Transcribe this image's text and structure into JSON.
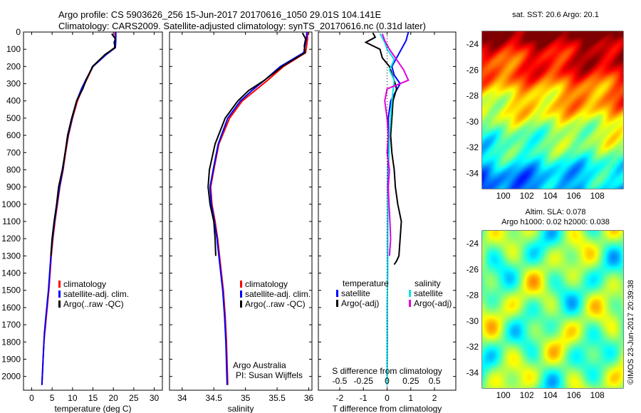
{
  "header": {
    "line1": "Argo profile: CS 5903626_256 15-Jun-2017 20170616_1050 29.01S 104.141E",
    "line2": "Climatology: CARS2009. Satellite-adjusted climatology: synTS_20170616.nc (0.31d later)"
  },
  "chart_data": [
    {
      "type": "line",
      "name": "temperature-profile",
      "xlabel": "temperature (deg C)",
      "ylabel": "",
      "xlim": [
        -2,
        32
      ],
      "ylim": [
        2080,
        0
      ],
      "xticks": [
        0,
        5,
        10,
        15,
        20,
        25,
        30
      ],
      "yticks": [
        0,
        100,
        200,
        300,
        400,
        500,
        600,
        700,
        800,
        900,
        1000,
        1100,
        1200,
        1300,
        1400,
        1500,
        1600,
        1700,
        1800,
        1900,
        2000
      ],
      "legend": [
        "climatology",
        "satellite-adj. clim.",
        "Argo(..raw -QC)"
      ],
      "series": [
        {
          "name": "climatology",
          "color": "#ff0000",
          "x": [
            20.4,
            20.4,
            20.3,
            18.2,
            15.0,
            13.4,
            12.4,
            11.2,
            10.0,
            9.0,
            8.3,
            7.7,
            6.9,
            6.3,
            5.7,
            5.2,
            4.8,
            4.5,
            4.2,
            4.0,
            3.8,
            3.6,
            3.4,
            3.2,
            3.0,
            2.9,
            2.8,
            2.7,
            2.6,
            2.5
          ],
          "y": [
            0,
            50,
            90,
            130,
            200,
            280,
            330,
            400,
            500,
            600,
            700,
            800,
            900,
            1000,
            1100,
            1200,
            1300,
            1400,
            1500,
            1550,
            1600,
            1650,
            1700,
            1750,
            1800,
            1850,
            1900,
            1950,
            2000,
            2050
          ]
        },
        {
          "name": "satellite-adj. clim.",
          "color": "#0000ff",
          "x": [
            20.6,
            20.6,
            20.5,
            18.3,
            15.0,
            13.2,
            12.2,
            11.0,
            9.9,
            8.9,
            8.2,
            7.6,
            6.8,
            6.2,
            5.6,
            5.1,
            4.7,
            4.4,
            4.1,
            3.9,
            3.7,
            3.5,
            3.3,
            3.1,
            3.0,
            2.9,
            2.8,
            2.7,
            2.6,
            2.5
          ],
          "y": [
            0,
            50,
            90,
            130,
            200,
            280,
            330,
            400,
            500,
            600,
            700,
            800,
            900,
            1000,
            1100,
            1200,
            1300,
            1400,
            1500,
            1550,
            1600,
            1650,
            1700,
            1750,
            1800,
            1850,
            1900,
            1950,
            2000,
            2050
          ]
        },
        {
          "name": "Argo(..raw -QC)",
          "color": "#000000",
          "x": [
            19.6,
            20.5,
            20.2,
            20.4,
            18.0,
            14.9,
            13.3,
            12.5,
            11.0,
            9.8,
            8.8,
            8.2,
            7.5,
            6.6,
            6.1,
            5.5,
            5.0,
            4.7
          ],
          "y": [
            10,
            40,
            60,
            90,
            130,
            200,
            280,
            330,
            400,
            500,
            600,
            700,
            800,
            900,
            1000,
            1100,
            1200,
            1300
          ]
        }
      ]
    },
    {
      "type": "line",
      "name": "salinity-profile",
      "xlabel": "salinity",
      "ylabel": "",
      "xlim": [
        33.8,
        36.05
      ],
      "ylim": [
        2080,
        0
      ],
      "xticks": [
        34,
        34.5,
        35,
        35.5,
        36
      ],
      "xticklabels": [
        "34",
        "34.5",
        "35",
        "35.5",
        "36"
      ],
      "legend": [
        "climatology",
        "satellite-adj. clim.",
        "Argo(..raw -QC)"
      ],
      "annotation": [
        "Argo Australia",
        "PI: Susan Wijffels"
      ],
      "series": [
        {
          "name": "climatology",
          "color": "#ff0000",
          "x": [
            35.98,
            35.98,
            35.95,
            35.6,
            35.35,
            35.15,
            34.95,
            34.75,
            34.58,
            34.5,
            34.45,
            34.47,
            34.52,
            34.56,
            34.59,
            34.62,
            34.65,
            34.68,
            34.7,
            34.72
          ],
          "y": [
            0,
            40,
            120,
            200,
            280,
            340,
            400,
            500,
            650,
            800,
            900,
            1000,
            1100,
            1200,
            1300,
            1400,
            1500,
            1650,
            1800,
            2050
          ]
        },
        {
          "name": "satellite-adj. clim.",
          "color": "#0000ff",
          "x": [
            35.97,
            35.96,
            35.92,
            35.55,
            35.3,
            35.1,
            34.92,
            34.72,
            34.57,
            34.49,
            34.44,
            34.46,
            34.51,
            34.55,
            34.58,
            34.61,
            34.64,
            34.67,
            34.69,
            34.71
          ],
          "y": [
            0,
            40,
            120,
            200,
            280,
            340,
            400,
            500,
            650,
            800,
            900,
            1000,
            1100,
            1200,
            1300,
            1400,
            1500,
            1650,
            1800,
            2050
          ]
        },
        {
          "name": "Argo(..raw -QC)",
          "color": "#000000",
          "x": [
            35.9,
            35.95,
            35.93,
            35.94,
            35.58,
            35.3,
            35.05,
            34.88,
            34.68,
            34.52,
            34.43,
            34.41,
            34.44,
            34.5,
            34.52,
            34.53
          ],
          "y": [
            5,
            40,
            80,
            120,
            200,
            280,
            340,
            400,
            500,
            650,
            800,
            900,
            1000,
            1100,
            1200,
            1300
          ]
        }
      ]
    },
    {
      "type": "line",
      "name": "difference-profile",
      "xlabel": "T difference from climatology",
      "xlabel2": "S difference from climatology",
      "xlim": [
        -2.9,
        2.9
      ],
      "ylim": [
        2080,
        0
      ],
      "xticks": [
        -2,
        -1,
        0,
        1,
        2
      ],
      "xticklabels": [
        "-2",
        "-1",
        "0",
        "1",
        "2"
      ],
      "xticks2": [
        -0.5,
        -0.25,
        0,
        0.25,
        0.5
      ],
      "xticklabels2": [
        "-0.5",
        "-0.25",
        "0",
        "0.25",
        "0.5"
      ],
      "legend_temperature": {
        "heading": "temperature",
        "items": [
          "satellite",
          "Argo(-adj)"
        ]
      },
      "legend_salinity": {
        "heading": "salinity",
        "items": [
          "satellite",
          "Argo(-adj)"
        ]
      },
      "series": [
        {
          "name": "temperature satellite",
          "color": "#0000ff",
          "x": [
            0.9,
            0.8,
            0.6,
            0.4,
            0.2,
            0.3,
            0.55,
            0.35,
            0.15,
            0.05,
            0.05,
            0.05,
            0.04,
            0.03,
            0.03,
            0.02,
            0.02,
            0.01,
            0.01,
            0.0,
            0.0
          ],
          "y": [
            0,
            50,
            100,
            150,
            200,
            250,
            300,
            350,
            400,
            500,
            600,
            700,
            800,
            900,
            1000,
            1200,
            1400,
            1600,
            1800,
            2000,
            2050
          ]
        },
        {
          "name": "temperature Argo(-adj)",
          "color": "#000000",
          "x": [
            -0.6,
            -0.5,
            -0.9,
            -0.3,
            -0.2,
            0.1,
            0.3,
            0.4,
            0.25,
            0.2,
            0.15,
            0.2,
            0.3,
            0.35,
            0.45,
            0.6,
            0.55,
            0.5,
            0.4,
            0.3
          ],
          "y": [
            5,
            30,
            60,
            100,
            150,
            200,
            280,
            330,
            400,
            500,
            600,
            700,
            800,
            900,
            1000,
            1100,
            1200,
            1300,
            1330,
            1350
          ]
        },
        {
          "name": "salinity satellite",
          "color": "#00e5e5",
          "x": [
            -0.3,
            -0.1,
            0.0,
            0.3,
            0.1,
            0.3,
            0.2,
            0.15,
            0.1,
            0.08,
            0.06,
            0.05,
            0.04,
            0.03,
            0.02,
            0.01,
            0.0
          ],
          "y": [
            10,
            60,
            100,
            160,
            220,
            280,
            400,
            500,
            600,
            700,
            800,
            900,
            1000,
            1200,
            1400,
            1700,
            2050
          ]
        },
        {
          "name": "salinity Argo(-adj)",
          "color": "#e000e0",
          "x": [
            -0.2,
            -0.1,
            0.1,
            0.7,
            0.9,
            0.0,
            -0.1,
            0.0,
            0.05,
            0.0,
            0.1,
            0.05,
            0.08,
            0.12,
            0.15,
            0.1
          ],
          "y": [
            10,
            50,
            100,
            220,
            280,
            330,
            400,
            500,
            600,
            700,
            800,
            900,
            1000,
            1100,
            1200,
            1300
          ]
        }
      ]
    },
    {
      "type": "heatmap",
      "name": "sst-map",
      "title": "sat. SST: 20.6 Argo: 20.1",
      "xticks": [
        100,
        102,
        104,
        106,
        108
      ],
      "yticks": [
        -24,
        -26,
        -28,
        -30,
        -32,
        -34
      ],
      "xlim": [
        98.2,
        110.2
      ],
      "ylim": [
        -35.2,
        -23.0
      ],
      "marker": {
        "lon": 104.141,
        "lat": -29.01
      }
    },
    {
      "type": "heatmap",
      "name": "sla-map",
      "title": "Altim. SLA: 0.078",
      "subtitle": "Argo h1000: 0.02 h2000: 0.038",
      "xticks": [
        100,
        102,
        104,
        106,
        108
      ],
      "yticks": [
        -24,
        -26,
        -28,
        -30,
        -32,
        -34
      ],
      "xlim": [
        98.2,
        110.2
      ],
      "ylim": [
        -35.2,
        -23.0
      ],
      "marker": {
        "lon": 104.141,
        "lat": -29.01
      }
    }
  ],
  "copyright": "©IMOS 23-Jun-2017 20:39:38"
}
